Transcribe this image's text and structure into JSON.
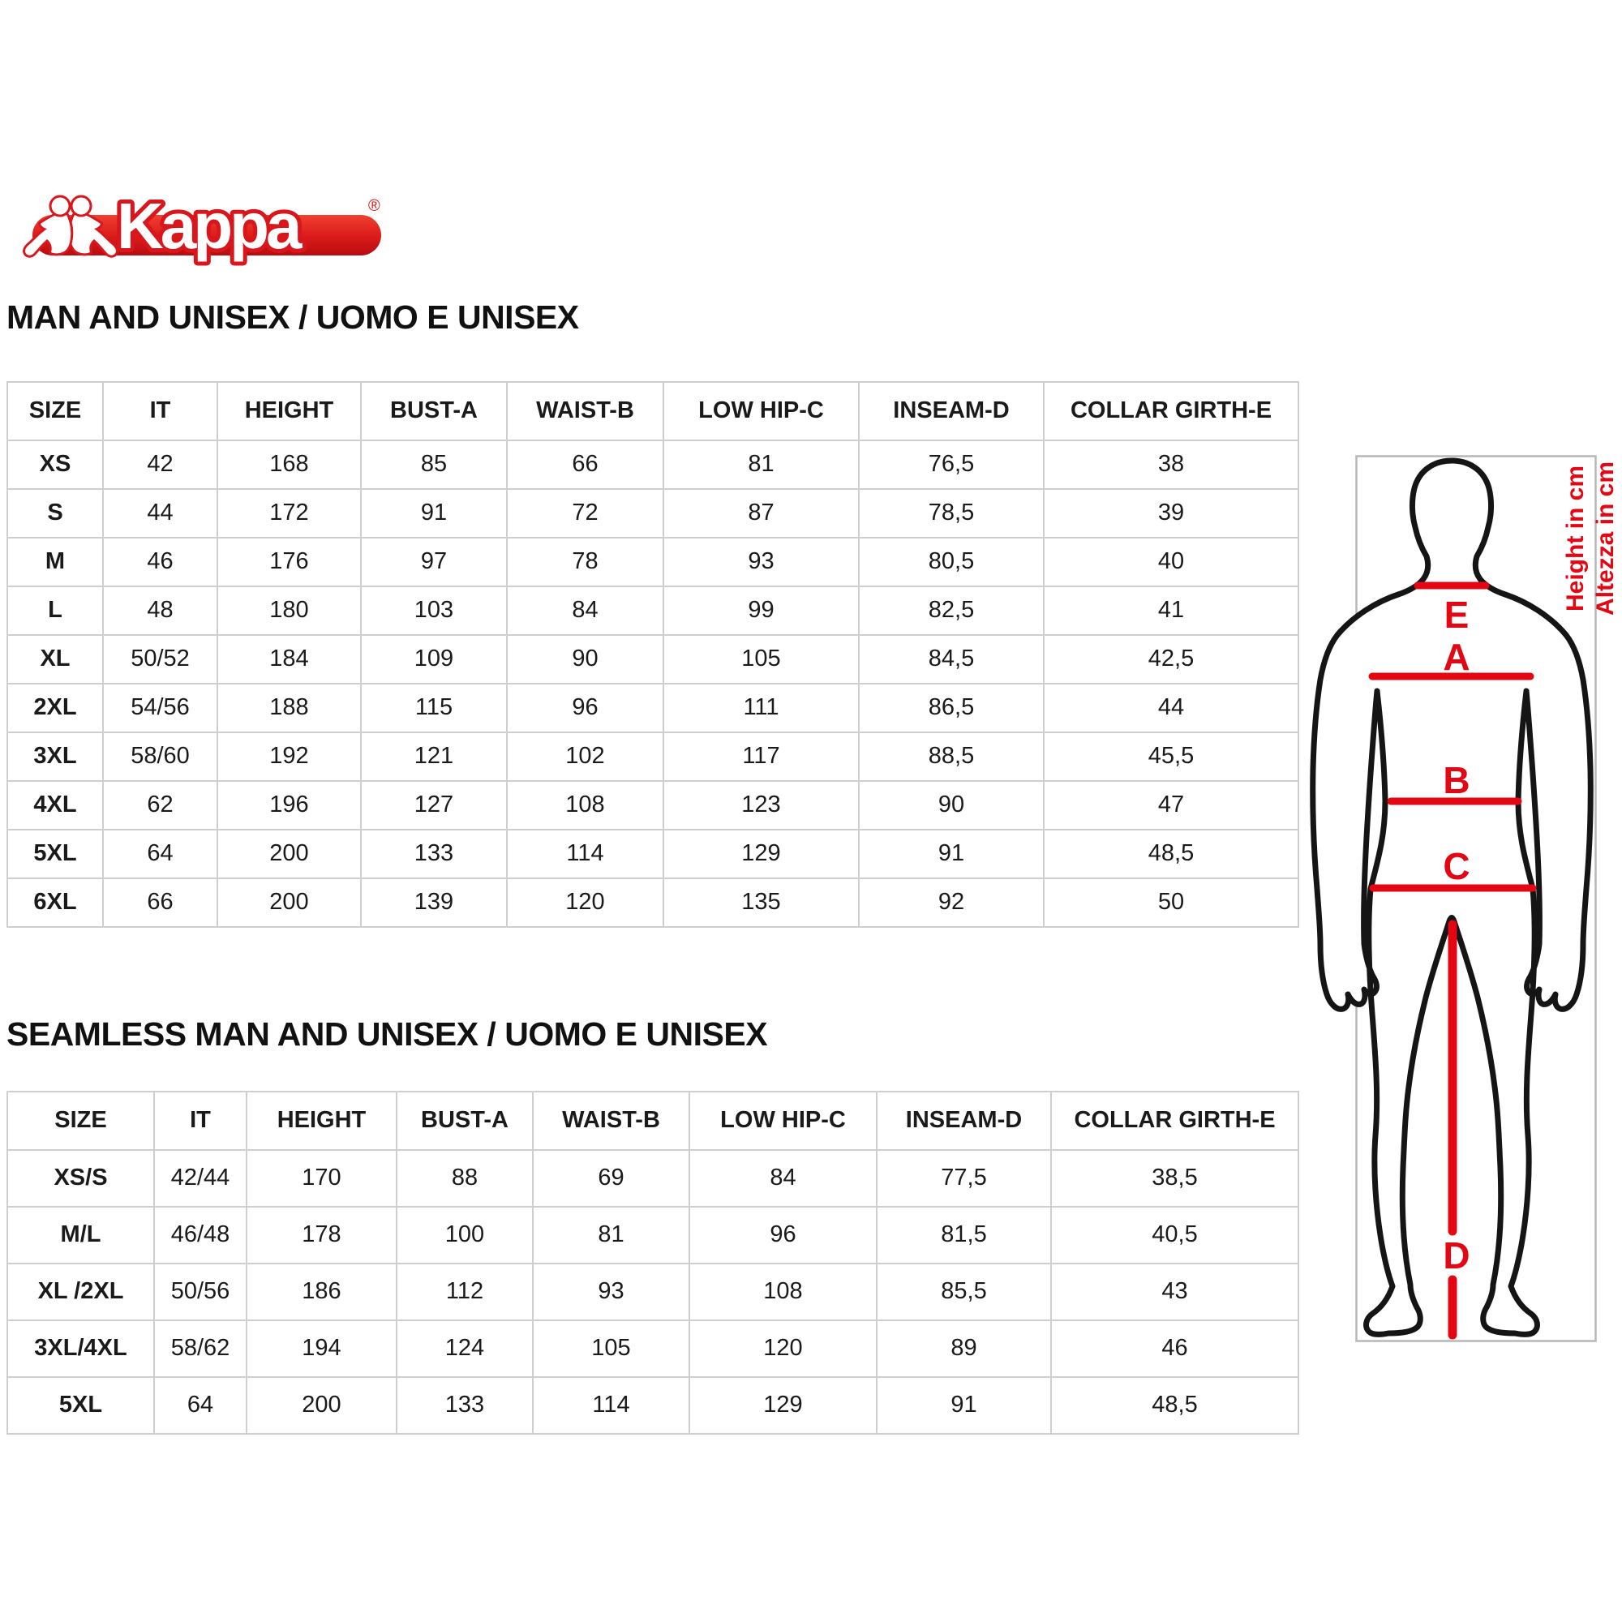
{
  "colors": {
    "accent": "#e30613",
    "logo_red": "#d8161b",
    "text": "#1a1a1a",
    "table_border": "#cfcfcf"
  },
  "logo": {
    "brand": "Kappa",
    "registered": "®"
  },
  "sections": [
    {
      "heading": "MAN AND UNISEX / UOMO E UNISEX",
      "columns": [
        "SIZE",
        "IT",
        "HEIGHT",
        "BUST-A",
        "WAIST-B",
        "LOW HIP-C",
        "INSEAM-D",
        "COLLAR GIRTH-E"
      ],
      "rows": [
        [
          "XS",
          "42",
          "168",
          "85",
          "66",
          "81",
          "76,5",
          "38"
        ],
        [
          "S",
          "44",
          "172",
          "91",
          "72",
          "87",
          "78,5",
          "39"
        ],
        [
          "M",
          "46",
          "176",
          "97",
          "78",
          "93",
          "80,5",
          "40"
        ],
        [
          "L",
          "48",
          "180",
          "103",
          "84",
          "99",
          "82,5",
          "41"
        ],
        [
          "XL",
          "50/52",
          "184",
          "109",
          "90",
          "105",
          "84,5",
          "42,5"
        ],
        [
          "2XL",
          "54/56",
          "188",
          "115",
          "96",
          "111",
          "86,5",
          "44"
        ],
        [
          "3XL",
          "58/60",
          "192",
          "121",
          "102",
          "117",
          "88,5",
          "45,5"
        ],
        [
          "4XL",
          "62",
          "196",
          "127",
          "108",
          "123",
          "90",
          "47"
        ],
        [
          "5XL",
          "64",
          "200",
          "133",
          "114",
          "129",
          "91",
          "48,5"
        ],
        [
          "6XL",
          "66",
          "200",
          "139",
          "120",
          "135",
          "92",
          "50"
        ]
      ]
    },
    {
      "heading": "SEAMLESS MAN AND UNISEX / UOMO E UNISEX",
      "columns": [
        "SIZE",
        "IT",
        "HEIGHT",
        "BUST-A",
        "WAIST-B",
        "LOW HIP-C",
        "INSEAM-D",
        "COLLAR GIRTH-E"
      ],
      "rows": [
        [
          "XS/S",
          "42/44",
          "170",
          "88",
          "69",
          "84",
          "77,5",
          "38,5"
        ],
        [
          "M/L",
          "46/48",
          "178",
          "100",
          "81",
          "96",
          "81,5",
          "40,5"
        ],
        [
          "XL /2XL",
          "50/56",
          "186",
          "112",
          "93",
          "108",
          "85,5",
          "43"
        ],
        [
          "3XL/4XL",
          "58/62",
          "194",
          "124",
          "105",
          "120",
          "89",
          "46"
        ],
        [
          "5XL",
          "64",
          "200",
          "133",
          "114",
          "129",
          "91",
          "48,5"
        ]
      ]
    }
  ],
  "figure": {
    "labels": {
      "neck": "E",
      "bust": "A",
      "waist": "B",
      "hip": "C",
      "inseam": "D"
    },
    "note_en": "Height in cm",
    "note_it": "Altezza in cm"
  }
}
